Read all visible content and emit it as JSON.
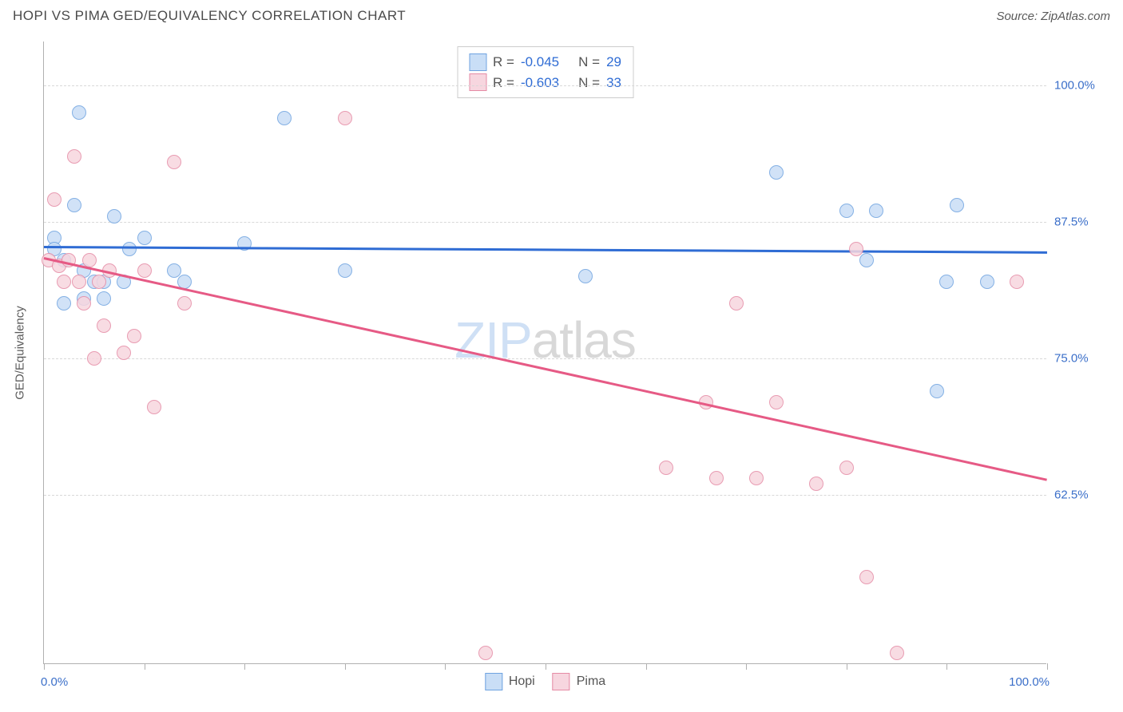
{
  "title": "HOPI VS PIMA GED/EQUIVALENCY CORRELATION CHART",
  "source": "Source: ZipAtlas.com",
  "watermark_zip": "ZIP",
  "watermark_atlas": "atlas",
  "chart": {
    "type": "scatter",
    "xlim": [
      0,
      100
    ],
    "ylim": [
      47,
      104
    ],
    "y_grid_values": [
      62.5,
      75.0,
      87.5,
      100.0
    ],
    "y_grid_labels": [
      "62.5%",
      "75.0%",
      "87.5%",
      "100.0%"
    ],
    "x_tick_values": [
      0,
      10,
      20,
      30,
      40,
      50,
      60,
      70,
      80,
      90,
      100
    ],
    "x_min_label": "0.0%",
    "x_max_label": "100.0%",
    "y_axis_title": "GED/Equivalency",
    "background_color": "#ffffff",
    "grid_color": "#d8d8d8",
    "axis_color": "#b0b0b0",
    "value_color": "#3b6fc9",
    "marker_radius": 9,
    "series": [
      {
        "name": "Hopi",
        "fill": "#c9def6",
        "stroke": "#6fa3e0",
        "line_color": "#2f6cd4",
        "R": "-0.045",
        "N": "29",
        "trend": {
          "x1": 0,
          "y1": 85.3,
          "x2": 100,
          "y2": 84.8
        },
        "points": [
          [
            1,
            86
          ],
          [
            1,
            85
          ],
          [
            2,
            84
          ],
          [
            2,
            80
          ],
          [
            3.5,
            97.5
          ],
          [
            3,
            89
          ],
          [
            4,
            83
          ],
          [
            4,
            80.5
          ],
          [
            5,
            82
          ],
          [
            6,
            80.5
          ],
          [
            6,
            82
          ],
          [
            7,
            88
          ],
          [
            8,
            82
          ],
          [
            8.5,
            85
          ],
          [
            10,
            86
          ],
          [
            13,
            83
          ],
          [
            14,
            82
          ],
          [
            20,
            85.5
          ],
          [
            24,
            97
          ],
          [
            30,
            83
          ],
          [
            54,
            82.5
          ],
          [
            73,
            92
          ],
          [
            80,
            88.5
          ],
          [
            82,
            84
          ],
          [
            83,
            88.5
          ],
          [
            89,
            72
          ],
          [
            90,
            82
          ],
          [
            91,
            89
          ],
          [
            94,
            82
          ]
        ]
      },
      {
        "name": "Pima",
        "fill": "#f7d6df",
        "stroke": "#e58ba5",
        "line_color": "#e65a85",
        "R": "-0.603",
        "N": "33",
        "trend": {
          "x1": 0,
          "y1": 84.3,
          "x2": 100,
          "y2": 64.0
        },
        "points": [
          [
            0.5,
            84
          ],
          [
            1,
            89.5
          ],
          [
            1.5,
            83.5
          ],
          [
            2,
            82
          ],
          [
            2.5,
            84
          ],
          [
            3,
            93.5
          ],
          [
            3.5,
            82
          ],
          [
            4,
            80
          ],
          [
            4.5,
            84
          ],
          [
            5,
            75
          ],
          [
            5.5,
            82
          ],
          [
            6,
            78
          ],
          [
            6.5,
            83
          ],
          [
            8,
            75.5
          ],
          [
            9,
            77
          ],
          [
            10,
            83
          ],
          [
            11,
            70.5
          ],
          [
            13,
            93
          ],
          [
            14,
            80
          ],
          [
            30,
            97
          ],
          [
            44,
            48
          ],
          [
            62,
            65
          ],
          [
            66,
            71
          ],
          [
            67,
            64
          ],
          [
            69,
            80
          ],
          [
            71,
            64
          ],
          [
            73,
            71
          ],
          [
            77,
            63.5
          ],
          [
            80,
            65
          ],
          [
            81,
            85
          ],
          [
            82,
            55
          ],
          [
            85,
            48
          ],
          [
            97,
            82
          ]
        ]
      }
    ]
  },
  "legend_top": {
    "r_label": "R =",
    "n_label": "N ="
  },
  "legend_bottom": [
    "Hopi",
    "Pima"
  ]
}
